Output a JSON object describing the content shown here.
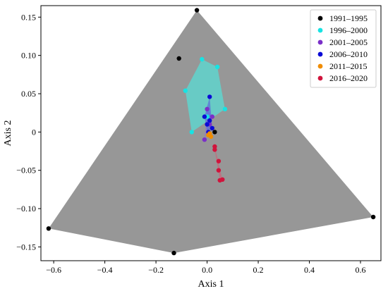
{
  "chart_data": {
    "type": "scatter",
    "xlabel": "Axis 1",
    "ylabel": "Axis 2",
    "xlim": [
      -0.65,
      0.68
    ],
    "ylim": [
      -0.168,
      0.165
    ],
    "xticks": [
      -0.6,
      -0.4,
      -0.2,
      0.0,
      0.2,
      0.4,
      0.6
    ],
    "xtick_labels": [
      "−0.6",
      "−0.4",
      "−0.2",
      "0.0",
      "0.2",
      "0.4",
      "0.6"
    ],
    "yticks": [
      -0.15,
      -0.1,
      -0.05,
      0.0,
      0.05,
      0.1,
      0.15
    ],
    "ytick_labels": [
      "−0.15",
      "−0.10",
      "−0.05",
      "0",
      "0.05",
      "0.10",
      "0.15"
    ],
    "grid": false,
    "legend_position": "top-right",
    "series": [
      {
        "name": "1991–1995",
        "color": "#000000",
        "hull_color": "#808080",
        "hull_opacity": 0.82,
        "points": [
          [
            -0.04,
            0.159
          ],
          [
            -0.11,
            0.096
          ],
          [
            -0.62,
            -0.126
          ],
          [
            -0.13,
            -0.158
          ],
          [
            0.65,
            -0.111
          ],
          [
            0.03,
            0.0
          ]
        ],
        "hull": [
          [
            -0.04,
            0.159
          ],
          [
            0.65,
            -0.111
          ],
          [
            -0.13,
            -0.158
          ],
          [
            -0.62,
            -0.126
          ]
        ]
      },
      {
        "name": "1996–2000",
        "color": "#17e3e3",
        "hull_color": "#5fd4cc",
        "hull_opacity": 0.85,
        "points": [
          [
            -0.02,
            0.095
          ],
          [
            0.04,
            0.085
          ],
          [
            0.07,
            0.03
          ],
          [
            -0.06,
            0.0
          ],
          [
            -0.085,
            0.054
          ],
          [
            0.0,
            0.02
          ]
        ],
        "hull": [
          [
            -0.02,
            0.095
          ],
          [
            0.04,
            0.085
          ],
          [
            0.07,
            0.03
          ],
          [
            -0.06,
            0.0
          ],
          [
            -0.085,
            0.054
          ]
        ]
      },
      {
        "name": "2001–2005",
        "color": "#7a2fc8",
        "hull_color": "#8c6fd6",
        "hull_opacity": 0.6,
        "points": [
          [
            0.02,
            0.02
          ],
          [
            -0.01,
            -0.01
          ],
          [
            0.01,
            0.01
          ],
          [
            0.0,
            0.03
          ]
        ],
        "hull": [
          [
            0.0,
            0.03
          ],
          [
            0.02,
            0.02
          ],
          [
            -0.01,
            -0.01
          ]
        ]
      },
      {
        "name": "2006–2010",
        "color": "#0a0ad6",
        "hull_color": "#5b6bd8",
        "hull_opacity": 0.7,
        "points": [
          [
            0.01,
            0.046
          ],
          [
            -0.01,
            0.02
          ],
          [
            0.0,
            0.01
          ],
          [
            0.01,
            0.015
          ],
          [
            0.02,
            0.005
          ],
          [
            0.005,
            0.0
          ]
        ],
        "hull": [
          [
            0.01,
            0.046
          ],
          [
            0.02,
            0.005
          ],
          [
            0.0,
            0.0
          ],
          [
            -0.01,
            0.02
          ]
        ]
      },
      {
        "name": "2011–2015",
        "color": "#f08c00",
        "hull_color": "#d98c2f",
        "hull_opacity": 0.75,
        "points": [
          [
            0.01,
            -0.002
          ],
          [
            0.015,
            -0.006
          ],
          [
            0.005,
            -0.004
          ]
        ],
        "hull": [
          [
            0.01,
            -0.002
          ],
          [
            0.015,
            -0.006
          ],
          [
            0.005,
            -0.004
          ]
        ]
      },
      {
        "name": "2016–2020",
        "color": "#d0143c",
        "hull_color": "#c46a7d",
        "hull_opacity": 0.8,
        "points": [
          [
            0.03,
            -0.019
          ],
          [
            0.03,
            -0.023
          ],
          [
            0.045,
            -0.038
          ],
          [
            0.045,
            -0.05
          ],
          [
            0.06,
            -0.062
          ],
          [
            0.05,
            -0.063
          ]
        ],
        "hull": [
          [
            0.03,
            -0.019
          ],
          [
            0.06,
            -0.062
          ],
          [
            0.05,
            -0.063
          ],
          [
            0.03,
            -0.023
          ]
        ]
      }
    ]
  }
}
